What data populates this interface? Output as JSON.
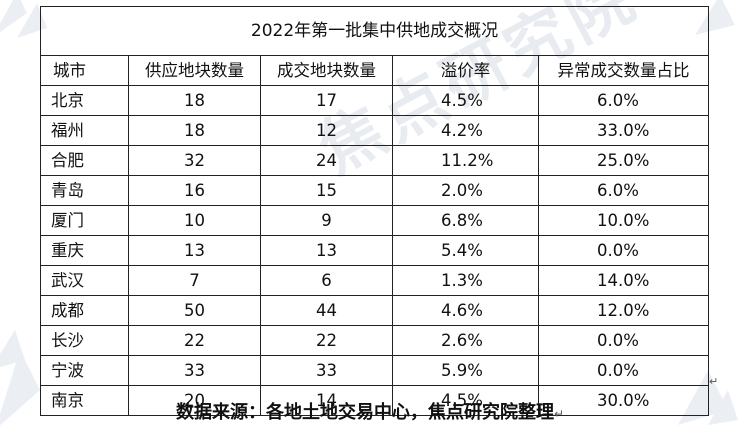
{
  "table": {
    "title": "2022年第一批集中供地成交概况",
    "headers": [
      "城市",
      "供应地块数量",
      "成交地块数量",
      "溢价率",
      "异常成交数量占比"
    ],
    "rows": [
      [
        "北京",
        "18",
        "17",
        "4.5%",
        "6.0%"
      ],
      [
        "福州",
        "18",
        "12",
        "4.2%",
        "33.0%"
      ],
      [
        "合肥",
        "32",
        "24",
        "11.2%",
        "25.0%"
      ],
      [
        "青岛",
        "16",
        "15",
        "2.0%",
        "6.0%"
      ],
      [
        "厦门",
        "10",
        "9",
        "6.8%",
        "10.0%"
      ],
      [
        "重庆",
        "13",
        "13",
        "5.4%",
        "0.0%"
      ],
      [
        "武汉",
        "7",
        "6",
        "1.3%",
        "14.0%"
      ],
      [
        "成都",
        "50",
        "44",
        "4.6%",
        "12.0%"
      ],
      [
        "长沙",
        "22",
        "22",
        "2.6%",
        "0.0%"
      ],
      [
        "宁波",
        "33",
        "33",
        "5.9%",
        "0.0%"
      ],
      [
        "南京",
        "20",
        "14",
        "4.5%",
        "30.0%"
      ]
    ]
  },
  "source_note": "数据来源：各地土地交易中心，焦点研究院整理",
  "paragraph_mark": "↵",
  "watermark": "焦点研究院",
  "colors": {
    "border": "#222222",
    "watermark": "#d6dde6"
  }
}
